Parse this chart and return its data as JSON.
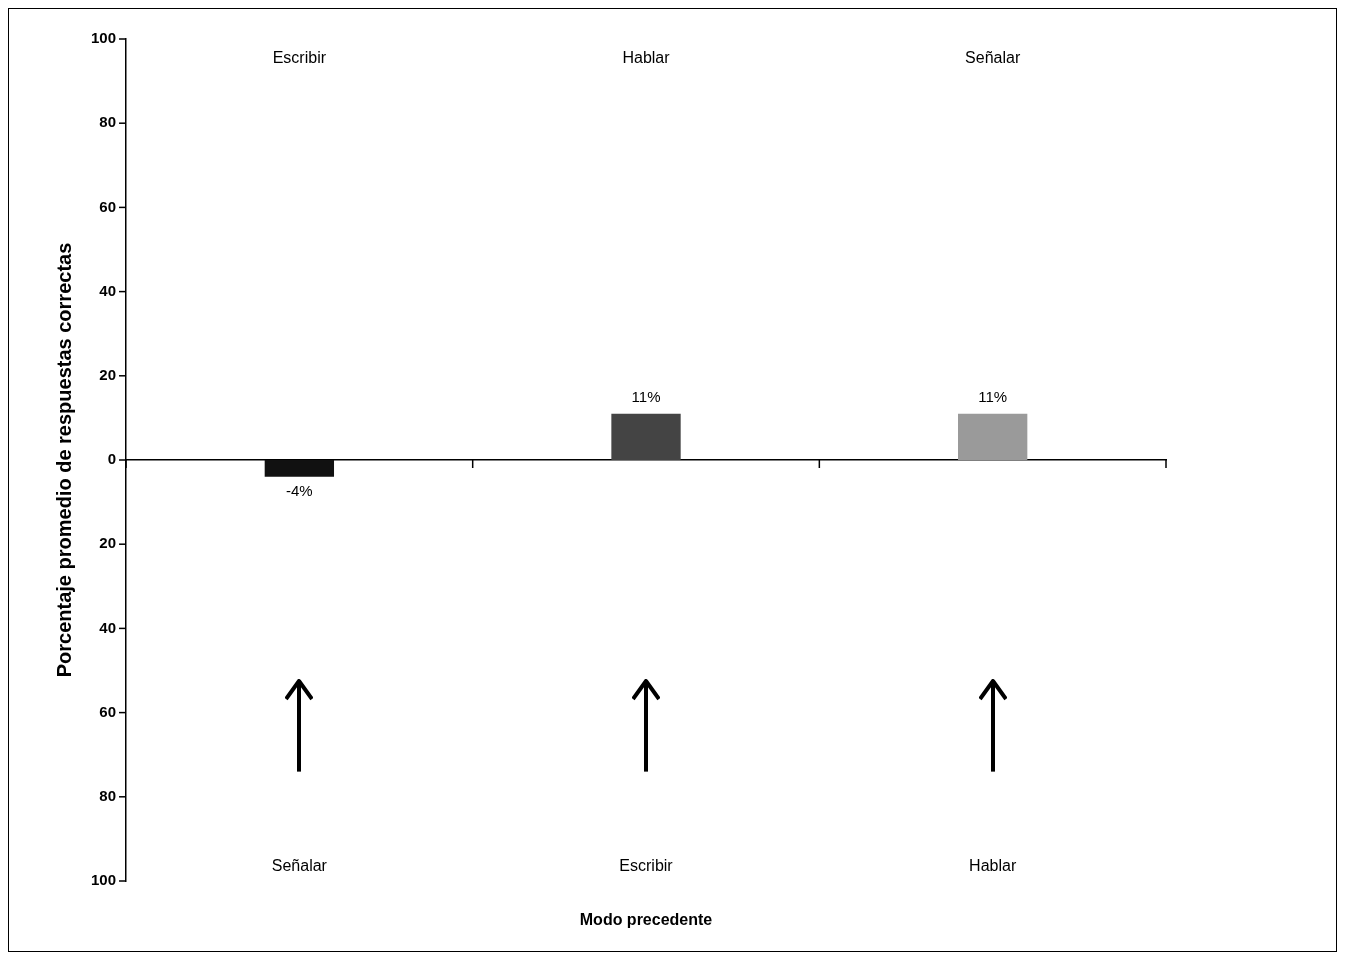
{
  "chart_data": {
    "type": "bar",
    "xlabel": "Modo precedente",
    "ylabel": "Porcentaje promedio de respuestas correctas",
    "categories": [
      "Señalar",
      "Escribir",
      "Hablar"
    ],
    "values": [
      -4,
      11,
      11
    ],
    "colors": [
      "#111111",
      "#444444",
      "#9a9a9a"
    ],
    "value_labels": [
      "-4%",
      "11%",
      "11%"
    ],
    "ylim": [
      -100,
      100
    ],
    "yticks": [
      {
        "value": -100,
        "label": "100"
      },
      {
        "value": -80,
        "label": "80"
      },
      {
        "value": -60,
        "label": "60"
      },
      {
        "value": -40,
        "label": "40"
      },
      {
        "value": -20,
        "label": "20"
      },
      0,
      20,
      40,
      60,
      80,
      100
    ],
    "annotations": [
      "Escribir",
      "Hablar",
      "Señalar"
    ],
    "legend": false
  }
}
